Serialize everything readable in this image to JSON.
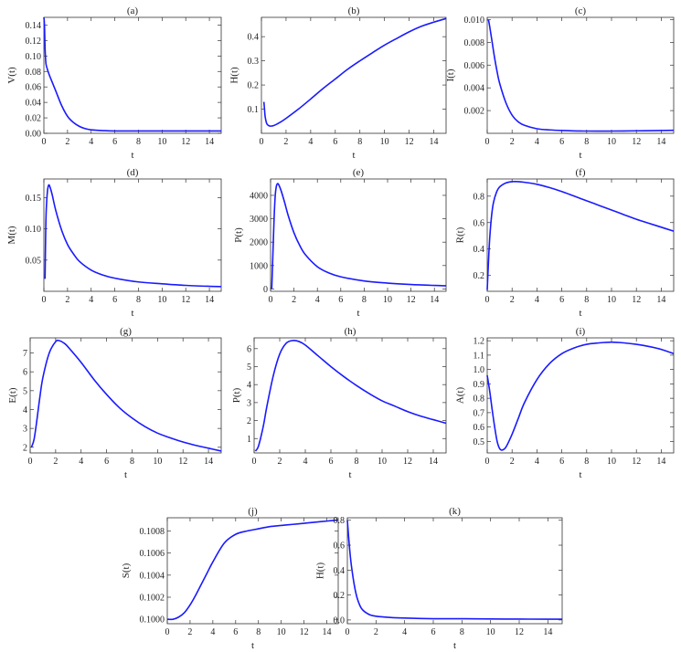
{
  "figure": {
    "colors": {
      "curve": "#1a1aff"
    }
  },
  "chart_data": [
    {
      "type": "line",
      "title": "(a)",
      "xlabel": "t",
      "ylabel": "V(t)",
      "xlim": [
        0,
        15
      ],
      "ylim": [
        0,
        0.15
      ],
      "xticks": [
        0,
        2,
        4,
        6,
        8,
        10,
        12,
        14
      ],
      "yticks": [
        0.0,
        0.02,
        0.04,
        0.06,
        0.08,
        0.1,
        0.12,
        0.14
      ],
      "ytick_labels": [
        "0.00",
        "0.02",
        "0.04",
        "0.06",
        "0.08",
        "0.10",
        "0.12",
        "0.14"
      ],
      "series": [
        {
          "x": [
            0.0,
            0.05,
            0.1,
            0.15,
            0.2,
            0.4,
            0.6,
            1.0,
            1.5,
            2.0,
            2.5,
            3.0,
            3.5,
            4.0,
            5.0,
            6.0,
            8.0,
            10.0,
            12.0,
            14.0,
            15.0
          ],
          "y": [
            0.15,
            0.14,
            0.11,
            0.095,
            0.088,
            0.078,
            0.07,
            0.055,
            0.036,
            0.022,
            0.014,
            0.009,
            0.006,
            0.0045,
            0.0035,
            0.003,
            0.003,
            0.003,
            0.003,
            0.003,
            0.003
          ]
        }
      ]
    },
    {
      "type": "line",
      "title": "(b)",
      "xlabel": "t",
      "ylabel": "H(t)",
      "xlim": [
        0,
        15
      ],
      "ylim": [
        0,
        0.48
      ],
      "xticks": [
        0,
        2,
        4,
        6,
        8,
        10,
        12,
        14
      ],
      "yticks": [
        0.1,
        0.2,
        0.3,
        0.4
      ],
      "ytick_labels": [
        "0.1",
        "0.2",
        "0.3",
        "0.4"
      ],
      "series": [
        {
          "x": [
            0.2,
            0.25,
            0.3,
            0.4,
            0.5,
            0.7,
            1.0,
            1.5,
            2.0,
            3.0,
            4.0,
            5.0,
            6.0,
            7.0,
            8.0,
            9.0,
            10.0,
            11.0,
            12.0,
            13.0,
            14.0,
            15.0
          ],
          "y": [
            0.13,
            0.1,
            0.07,
            0.045,
            0.035,
            0.03,
            0.032,
            0.045,
            0.062,
            0.1,
            0.142,
            0.185,
            0.225,
            0.265,
            0.3,
            0.333,
            0.365,
            0.393,
            0.42,
            0.443,
            0.46,
            0.475
          ]
        }
      ]
    },
    {
      "type": "line",
      "title": "(c)",
      "xlabel": "t",
      "ylabel": "I(t)",
      "xlim": [
        0,
        15
      ],
      "ylim": [
        0,
        0.0102
      ],
      "xticks": [
        0,
        2,
        4,
        6,
        8,
        10,
        12,
        14
      ],
      "yticks": [
        0.002,
        0.004,
        0.006,
        0.008,
        0.01
      ],
      "ytick_labels": [
        "0.002",
        "0.004",
        "0.006",
        "0.008",
        "0.010"
      ],
      "series": [
        {
          "x": [
            0.1,
            0.2,
            0.4,
            0.6,
            0.8,
            1.0,
            1.5,
            2.0,
            2.5,
            3.0,
            4.0,
            5.0,
            6.0,
            8.0,
            10.0,
            12.0,
            14.0,
            15.0
          ],
          "y": [
            0.01,
            0.0094,
            0.008,
            0.0066,
            0.0054,
            0.0044,
            0.0027,
            0.0016,
            0.001,
            0.0007,
            0.0004,
            0.0003,
            0.00025,
            0.0002,
            0.0002,
            0.00022,
            0.00025,
            0.00027
          ]
        }
      ]
    },
    {
      "type": "line",
      "title": "(d)",
      "xlabel": "t",
      "ylabel": "M(t)",
      "xlim": [
        0,
        15
      ],
      "ylim": [
        0,
        0.18
      ],
      "xticks": [
        0,
        2,
        4,
        6,
        8,
        10,
        12,
        14
      ],
      "yticks": [
        0.05,
        0.1,
        0.15
      ],
      "ytick_labels": [
        "0.05",
        "0.10",
        "0.15"
      ],
      "series": [
        {
          "x": [
            0.1,
            0.15,
            0.2,
            0.3,
            0.4,
            0.5,
            0.7,
            1.0,
            1.5,
            2.0,
            2.5,
            3.0,
            4.0,
            5.0,
            6.0,
            8.0,
            10.0,
            12.0,
            14.0,
            15.0
          ],
          "y": [
            0.02,
            0.09,
            0.13,
            0.16,
            0.17,
            0.168,
            0.155,
            0.13,
            0.098,
            0.075,
            0.06,
            0.048,
            0.034,
            0.026,
            0.021,
            0.015,
            0.012,
            0.0095,
            0.008,
            0.0075
          ]
        }
      ]
    },
    {
      "type": "line",
      "title": "(e)",
      "xlabel": "t",
      "ylabel": "P(t)",
      "xlim": [
        0,
        15
      ],
      "ylim": [
        -100,
        4700
      ],
      "xticks": [
        0,
        2,
        4,
        6,
        8,
        10,
        12,
        14
      ],
      "yticks": [
        0,
        1000,
        2000,
        3000,
        4000
      ],
      "ytick_labels": [
        "0",
        "1000",
        "2000",
        "3000",
        "4000"
      ],
      "series": [
        {
          "x": [
            0.1,
            0.2,
            0.3,
            0.4,
            0.5,
            0.6,
            0.7,
            0.9,
            1.2,
            1.5,
            2.0,
            2.5,
            3.0,
            4.0,
            5.0,
            6.0,
            8.0,
            10.0,
            12.0,
            14.0,
            15.0
          ],
          "y": [
            0,
            1500,
            3000,
            4000,
            4400,
            4500,
            4450,
            4200,
            3700,
            3150,
            2400,
            1850,
            1450,
            950,
            680,
            520,
            340,
            250,
            190,
            150,
            135
          ]
        }
      ]
    },
    {
      "type": "line",
      "title": "(f)",
      "xlabel": "t",
      "ylabel": "R(t)",
      "xlim": [
        0,
        15
      ],
      "ylim": [
        0.08,
        0.93
      ],
      "xticks": [
        0,
        2,
        4,
        6,
        8,
        10,
        12,
        14
      ],
      "yticks": [
        0.2,
        0.4,
        0.6,
        0.8
      ],
      "ytick_labels": [
        "0.2",
        "0.4",
        "0.6",
        "0.8"
      ],
      "series": [
        {
          "x": [
            0.0,
            0.1,
            0.2,
            0.35,
            0.5,
            0.75,
            1.0,
            1.5,
            2.0,
            2.5,
            3.0,
            4.0,
            5.0,
            6.0,
            7.0,
            8.0,
            9.0,
            10.0,
            11.0,
            12.0,
            13.0,
            14.0,
            15.0
          ],
          "y": [
            0.09,
            0.3,
            0.48,
            0.65,
            0.75,
            0.83,
            0.87,
            0.9,
            0.91,
            0.91,
            0.905,
            0.89,
            0.865,
            0.835,
            0.8,
            0.765,
            0.73,
            0.695,
            0.66,
            0.625,
            0.595,
            0.565,
            0.535
          ]
        }
      ]
    },
    {
      "type": "line",
      "title": "(g)",
      "xlabel": "t",
      "ylabel": "E(t)",
      "xlim": [
        0,
        15
      ],
      "ylim": [
        1.7,
        7.8
      ],
      "xticks": [
        0,
        2,
        4,
        6,
        8,
        10,
        12,
        14
      ],
      "yticks": [
        2,
        3,
        4,
        5,
        6,
        7
      ],
      "ytick_labels": [
        "2",
        "3",
        "4",
        "5",
        "6",
        "7"
      ],
      "series": [
        {
          "x": [
            0.1,
            0.3,
            0.5,
            0.75,
            1.0,
            1.5,
            2.0,
            2.3,
            2.7,
            3.0,
            4.0,
            5.0,
            6.0,
            7.0,
            8.0,
            9.0,
            10.0,
            11.0,
            12.0,
            13.0,
            14.0,
            15.0
          ],
          "y": [
            2.0,
            2.4,
            3.3,
            4.6,
            5.7,
            7.0,
            7.6,
            7.65,
            7.5,
            7.3,
            6.5,
            5.6,
            4.8,
            4.1,
            3.55,
            3.1,
            2.75,
            2.5,
            2.28,
            2.1,
            1.95,
            1.8
          ]
        }
      ]
    },
    {
      "type": "line",
      "title": "(h)",
      "xlabel": "t",
      "ylabel": "P(t)",
      "xlim": [
        0,
        15
      ],
      "ylim": [
        0.2,
        6.6
      ],
      "xticks": [
        0,
        2,
        4,
        6,
        8,
        10,
        12,
        14
      ],
      "yticks": [
        1,
        2,
        3,
        4,
        5,
        6
      ],
      "ytick_labels": [
        "1",
        "2",
        "3",
        "4",
        "5",
        "6"
      ],
      "series": [
        {
          "x": [
            0.1,
            0.3,
            0.5,
            0.75,
            1.0,
            1.5,
            2.0,
            2.5,
            3.0,
            3.5,
            4.0,
            5.0,
            6.0,
            7.0,
            8.0,
            9.0,
            10.0,
            11.0,
            12.0,
            13.0,
            14.0,
            15.0
          ],
          "y": [
            0.3,
            0.5,
            1.0,
            1.8,
            2.8,
            4.5,
            5.7,
            6.3,
            6.45,
            6.4,
            6.2,
            5.6,
            5.0,
            4.45,
            3.95,
            3.5,
            3.1,
            2.8,
            2.5,
            2.25,
            2.05,
            1.85
          ]
        }
      ]
    },
    {
      "type": "line",
      "title": "(i)",
      "xlabel": "t",
      "ylabel": "A(t)",
      "xlim": [
        0,
        15
      ],
      "ylim": [
        0.42,
        1.22
      ],
      "xticks": [
        0,
        2,
        4,
        6,
        8,
        10,
        12,
        14
      ],
      "yticks": [
        0.5,
        0.6,
        0.7,
        0.8,
        0.9,
        1.0,
        1.1,
        1.2
      ],
      "ytick_labels": [
        "0.5",
        "0.6",
        "0.7",
        "0.8",
        "0.9",
        "1.0",
        "1.1",
        "1.2"
      ],
      "series": [
        {
          "x": [
            0.0,
            0.2,
            0.4,
            0.6,
            0.8,
            1.0,
            1.2,
            1.5,
            2.0,
            2.5,
            3.0,
            4.0,
            5.0,
            6.0,
            7.0,
            8.0,
            9.0,
            10.0,
            11.0,
            12.0,
            13.0,
            14.0,
            15.0
          ],
          "y": [
            0.96,
            0.85,
            0.72,
            0.6,
            0.5,
            0.45,
            0.44,
            0.46,
            0.55,
            0.66,
            0.77,
            0.93,
            1.04,
            1.11,
            1.15,
            1.175,
            1.185,
            1.19,
            1.185,
            1.175,
            1.16,
            1.14,
            1.11
          ]
        }
      ]
    },
    {
      "type": "line",
      "title": "(j)",
      "xlabel": "t",
      "ylabel": "S(t)",
      "xlim": [
        0,
        15
      ],
      "ylim": [
        0.09996,
        0.10092
      ],
      "xticks": [
        0,
        2,
        4,
        6,
        8,
        10,
        12,
        14
      ],
      "yticks": [
        0.1,
        0.1002,
        0.1004,
        0.1006,
        0.1008
      ],
      "ytick_labels": [
        "0.1000",
        "0.1002",
        "0.1004",
        "0.1006",
        "0.1008"
      ],
      "series": [
        {
          "x": [
            0,
            0.5,
            1,
            1.5,
            2,
            2.5,
            3,
            3.5,
            4,
            5,
            6,
            7,
            8,
            9,
            10,
            11,
            12,
            13,
            14,
            15
          ],
          "y": [
            0.1,
            0.1,
            0.10002,
            0.10006,
            0.10013,
            0.10022,
            0.10032,
            0.10042,
            0.10052,
            0.10069,
            0.10077,
            0.1008,
            0.10082,
            0.10084,
            0.10085,
            0.10086,
            0.10087,
            0.10088,
            0.10089,
            0.1009
          ]
        }
      ]
    },
    {
      "type": "line",
      "title": "(k)",
      "xlabel": "t",
      "ylabel": "H(t)",
      "xlim": [
        0,
        15
      ],
      "ylim": [
        -0.03,
        0.82
      ],
      "xticks": [
        0,
        2,
        4,
        6,
        8,
        10,
        12,
        14
      ],
      "yticks": [
        0.0,
        0.2,
        0.4,
        0.6,
        0.8
      ],
      "ytick_labels": [
        "0.0",
        "0.2",
        "0.4",
        "0.6",
        "0.8"
      ],
      "series": [
        {
          "x": [
            0.0,
            0.1,
            0.2,
            0.3,
            0.5,
            0.7,
            1.0,
            1.5,
            2.0,
            3.0,
            4.0,
            6.0,
            8.0,
            10.0,
            12.0,
            14.0,
            15.0
          ],
          "y": [
            0.8,
            0.65,
            0.52,
            0.42,
            0.27,
            0.17,
            0.09,
            0.045,
            0.03,
            0.02,
            0.015,
            0.01,
            0.01,
            0.008,
            0.007,
            0.006,
            0.006
          ]
        }
      ]
    }
  ]
}
